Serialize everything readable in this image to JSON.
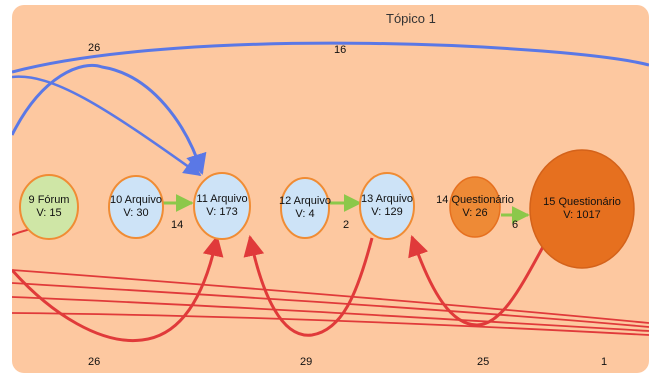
{
  "diagram": {
    "title": "Tópico 1",
    "colors": {
      "panel": "#fdc8a0",
      "blue_edge": "#5a78e6",
      "red_edge": "#e03a3a",
      "green_edge": "#8cc84a",
      "node_stroke": "#f08c34",
      "node_blue_fill": "#cde3f7",
      "node_green_fill": "#cfe6a6",
      "node_orange_fill": "#ee8a36",
      "node_big_fill": "#e6701f"
    },
    "nodes": [
      {
        "id": "n9",
        "line1": "9 Fórum",
        "line2": "V: 15",
        "fill": "green"
      },
      {
        "id": "n10",
        "line1": "10 Arquivo",
        "line2": "V: 30",
        "fill": "blue"
      },
      {
        "id": "n11",
        "line1": "11 Arquivo",
        "line2": "V: 173",
        "fill": "blue"
      },
      {
        "id": "n12",
        "line1": "12 Arquivo",
        "line2": "V: 4",
        "fill": "blue"
      },
      {
        "id": "n13",
        "line1": "13 Arquivo",
        "line2": "V: 129",
        "fill": "blue"
      },
      {
        "id": "n14",
        "line1": "14 Questionário",
        "line2": "V: 26",
        "fill": "orange"
      },
      {
        "id": "n15",
        "line1": "15 Questionário",
        "line2": "V: 1017",
        "fill": "big"
      }
    ],
    "edge_labels": {
      "top_left": "26",
      "top_mid": "16",
      "n10_n11": "14",
      "n12_n13": "2",
      "n14_n15": "6",
      "bottom_left": "26",
      "bottom_mid": "29",
      "bottom_right": "25",
      "bottom_far_right": "1"
    }
  }
}
